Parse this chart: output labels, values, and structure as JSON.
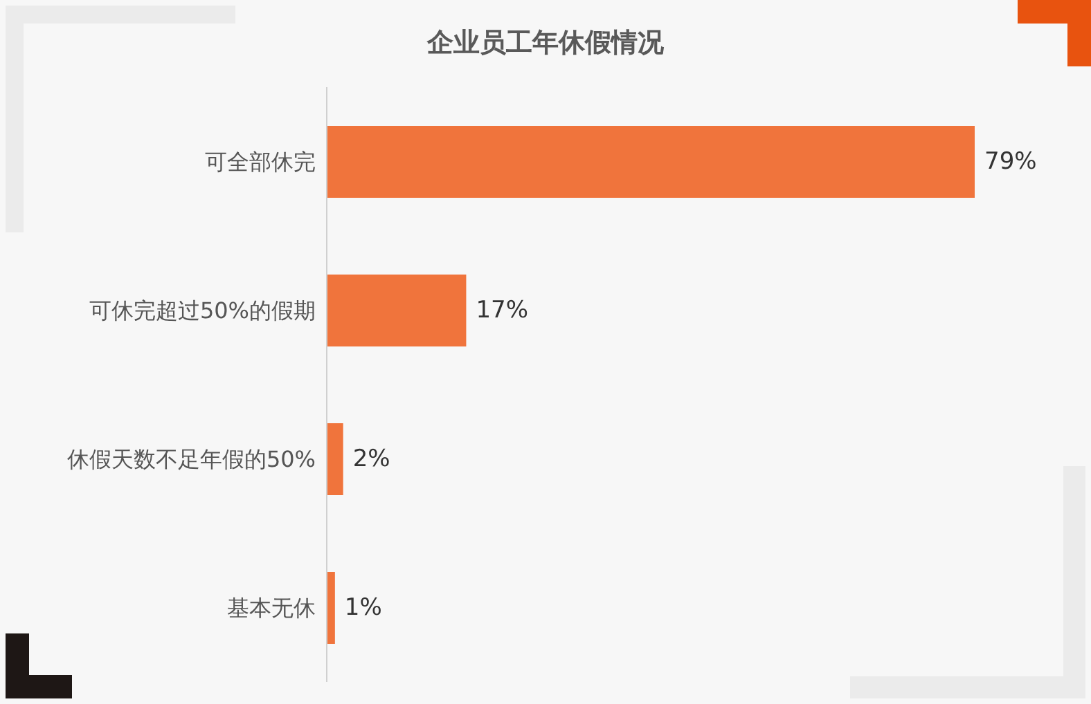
{
  "chart_data": {
    "type": "bar",
    "orientation": "horizontal",
    "title": "企业员工年休假情况",
    "categories": [
      "可全部休完",
      "可休完超过50%的假期",
      "休假天数不足年假的50%",
      "基本无休"
    ],
    "values": [
      79,
      17,
      2,
      1
    ],
    "value_labels": [
      "79%",
      "17%",
      "2%",
      "1%"
    ],
    "color": "#f0743c"
  }
}
